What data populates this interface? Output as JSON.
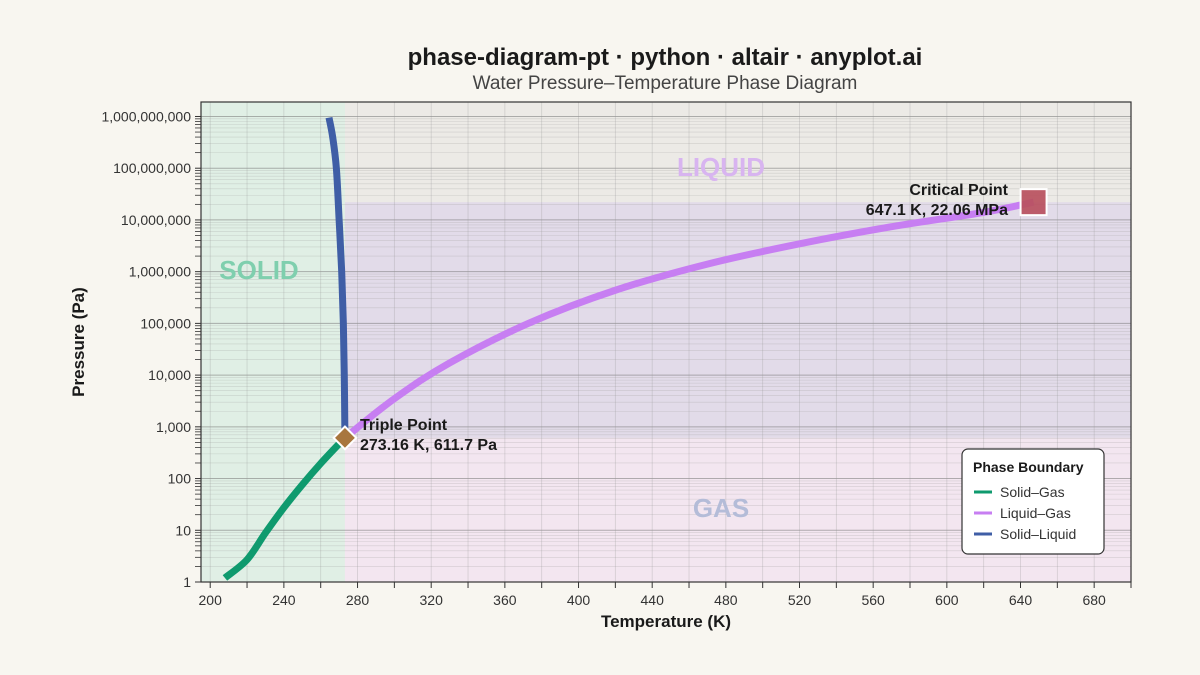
{
  "chart_data": {
    "type": "line",
    "title": "phase-diagram-pt · python · altair · anyplot.ai",
    "subtitle": "Water Pressure–Temperature Phase Diagram",
    "xlabel": "Temperature (K)",
    "ylabel": "Pressure (Pa)",
    "xlim": [
      195,
      700
    ],
    "ylim": [
      1,
      1000000000
    ],
    "y_scale": "log",
    "grid": true,
    "x_ticks": [
      "200",
      "240",
      "280",
      "320",
      "360",
      "400",
      "440",
      "480",
      "520",
      "560",
      "600",
      "640",
      "680"
    ],
    "y_ticks": [
      "1",
      "10",
      "100",
      "1,000",
      "10,000",
      "100,000",
      "1,000,000",
      "10,000,000",
      "100,000,000",
      "1,000,000,000"
    ],
    "regions": [
      {
        "label": "SOLID",
        "color": "#2aa876",
        "label_color": "#7fcfae"
      },
      {
        "label": "LIQUID",
        "color": "#9b6bd8",
        "label_color": "#d8b4f0"
      },
      {
        "label": "GAS",
        "color": "#e6a8d8",
        "label_color": "#b4bcd8"
      }
    ],
    "series": [
      {
        "name": "Solid–Gas",
        "color": "#0f9a6e",
        "x": [
          208,
          220,
          230,
          240,
          250,
          260,
          270,
          273.16
        ],
        "y": [
          1.2,
          2.7,
          8.9,
          27.4,
          76,
          196,
          470,
          611.7
        ]
      },
      {
        "name": "Liquid–Gas",
        "color": "#c77ef2",
        "x": [
          273.16,
          300,
          330,
          373.15,
          420,
          470,
          520,
          570,
          620,
          647.1
        ],
        "y": [
          611.7,
          3500,
          17200,
          101325,
          437000,
          1400000,
          3450000,
          7400000,
          14000000,
          22060000
        ]
      },
      {
        "name": "Solid–Liquid",
        "color": "#3f5ea6",
        "x": [
          273.16,
          273.1,
          272.8,
          272.3,
          271.4,
          270,
          268.5,
          266.5,
          264.5
        ],
        "y": [
          611.7,
          1000,
          10000,
          100000,
          1000000,
          10000000,
          100000000,
          400000000,
          950000000
        ]
      }
    ],
    "points": [
      {
        "name": "Triple Point",
        "x": 273.16,
        "y": 611.7,
        "label": "Triple Point",
        "value_label": "273.16 K, 611.7 Pa",
        "color": "#a8763e"
      },
      {
        "name": "Critical Point",
        "x": 647.1,
        "y": 22060000,
        "label": "Critical Point",
        "value_label": "647.1 K, 22.06 MPa",
        "color": "#b9505e"
      }
    ],
    "legend": {
      "title": "Phase Boundary",
      "position": "bottom-right"
    }
  }
}
